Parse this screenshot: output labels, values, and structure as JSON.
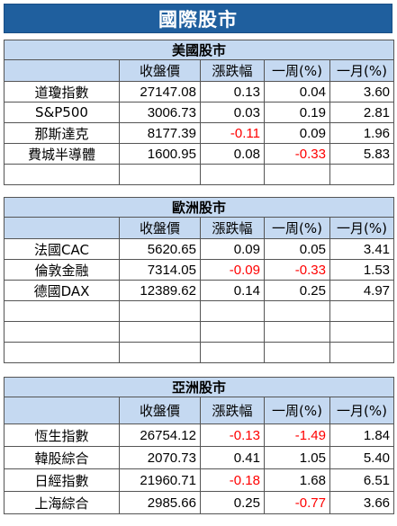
{
  "title": "國際股市",
  "headers": [
    "",
    "收盤價",
    "漲跌幅",
    "一周(%)",
    "一月(%)"
  ],
  "sections": [
    {
      "name": "美國股市",
      "rows": [
        {
          "name": "道瓊指數",
          "close": "27147.08",
          "chg": "0.13",
          "week": "0.04",
          "month": "3.60"
        },
        {
          "name": "S&P500",
          "close": "3006.73",
          "chg": "0.03",
          "week": "0.19",
          "month": "2.81"
        },
        {
          "name": "那斯達克",
          "close": "8177.39",
          "chg": "-0.11",
          "week": "0.09",
          "month": "1.96"
        },
        {
          "name": "費城半導體",
          "close": "1600.95",
          "chg": "0.08",
          "week": "-0.33",
          "month": "5.83"
        },
        {
          "name": "",
          "close": "",
          "chg": "",
          "week": "",
          "month": ""
        }
      ]
    },
    {
      "name": "歐洲股市",
      "rows": [
        {
          "name": "法國CAC",
          "close": "5620.65",
          "chg": "0.09",
          "week": "0.05",
          "month": "3.41"
        },
        {
          "name": "倫敦金融",
          "close": "7314.05",
          "chg": "-0.09",
          "week": "-0.33",
          "month": "1.53"
        },
        {
          "name": "德國DAX",
          "close": "12389.62",
          "chg": "0.14",
          "week": "0.25",
          "month": "4.97"
        },
        {
          "name": "",
          "close": "",
          "chg": "",
          "week": "",
          "month": ""
        },
        {
          "name": "",
          "close": "",
          "chg": "",
          "week": "",
          "month": ""
        },
        {
          "name": "",
          "close": "",
          "chg": "",
          "week": "",
          "month": ""
        }
      ]
    },
    {
      "name": "亞洲股市",
      "rows": [
        {
          "name": "恆生指數",
          "close": "26754.12",
          "chg": "-0.13",
          "week": "-1.49",
          "month": "1.84"
        },
        {
          "name": "韓股綜合",
          "close": "2070.73",
          "chg": "0.41",
          "week": "1.05",
          "month": "5.40"
        },
        {
          "name": "日經指數",
          "close": "21960.71",
          "chg": "-0.18",
          "week": "1.68",
          "month": "6.51"
        },
        {
          "name": "上海綜合",
          "close": "2985.66",
          "chg": "0.25",
          "week": "-0.77",
          "month": "3.66"
        }
      ]
    }
  ]
}
